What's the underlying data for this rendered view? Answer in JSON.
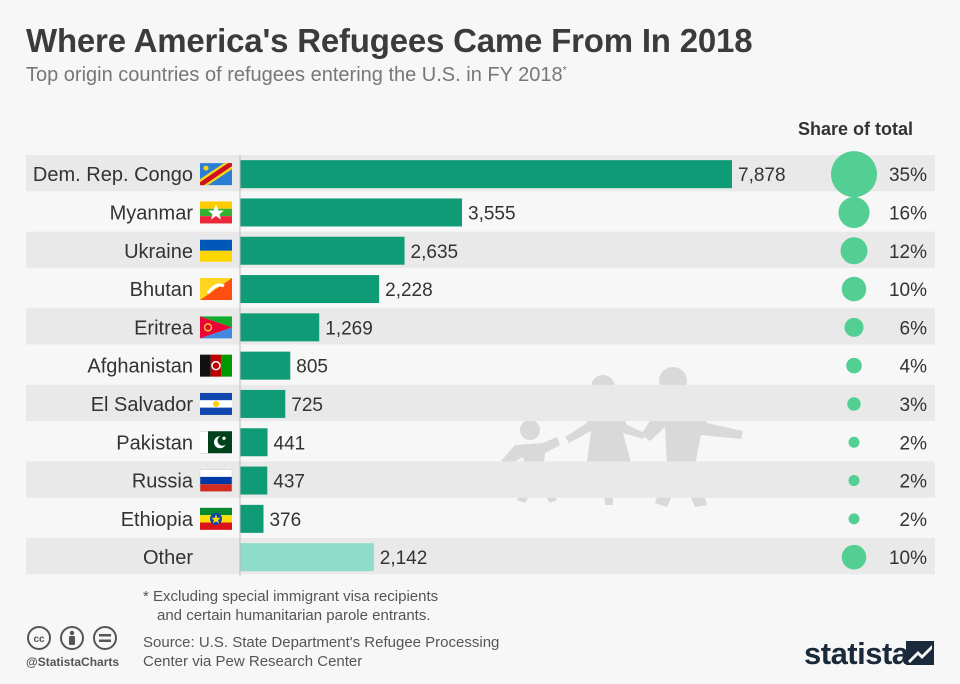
{
  "header": {
    "title": "Where America's Refugees Came From In 2018",
    "subtitle": "Top origin countries of refugees entering the U.S. in FY 2018",
    "subtitle_mark": "*",
    "share_header": "Share of total"
  },
  "chart_data": {
    "type": "bar",
    "orientation": "horizontal",
    "categories": [
      "Dem. Rep. Congo",
      "Myanmar",
      "Ukraine",
      "Bhutan",
      "Eritrea",
      "Afghanistan",
      "El Salvador",
      "Pakistan",
      "Russia",
      "Ethiopia",
      "Other"
    ],
    "values": [
      7878,
      3555,
      2635,
      2228,
      1269,
      805,
      725,
      441,
      437,
      376,
      2142
    ],
    "value_labels": [
      "7,878",
      "3,555",
      "2,635",
      "2,228",
      "1,269",
      "805",
      "725",
      "441",
      "437",
      "376",
      "2,142"
    ],
    "share_values": [
      35,
      16,
      12,
      10,
      6,
      4,
      3,
      2,
      2,
      2,
      10
    ],
    "share_labels": [
      "35%",
      "16%",
      "12%",
      "10%",
      "6%",
      "4%",
      "3%",
      "2%",
      "2%",
      "2%",
      "10%"
    ],
    "flags": [
      "flag-dr-congo",
      "flag-myanmar",
      "flag-ukraine",
      "flag-bhutan",
      "flag-eritrea",
      "flag-afghanistan",
      "flag-el-salvador",
      "flag-pakistan",
      "flag-russia",
      "flag-ethiopia",
      ""
    ],
    "colors": {
      "bar": "#109b77",
      "bar_other": "#8fdcc9",
      "bubble": "#53cf94",
      "row_band": "#e9e9e9"
    },
    "xlim": [
      0,
      7878
    ]
  },
  "footer": {
    "footnote_line1": "* Excluding special immigrant visa recipients",
    "footnote_line2": "and certain humanitarian parole entrants.",
    "source_line1": "Source: U.S. State Department's Refugee Processing",
    "source_line2": "Center via Pew Research Center",
    "handle": "@StatistaCharts",
    "logo": "statista"
  },
  "icons": [
    "cc-icon",
    "attribution-icon",
    "no-derivatives-icon",
    "statista-logo-mark",
    "refugee-family-watermark"
  ]
}
